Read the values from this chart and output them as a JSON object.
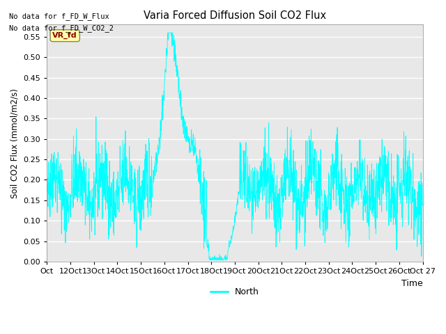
{
  "title": "Varia Forced Diffusion Soil CO2 Flux",
  "ylabel": "Soil CO2 Flux (mmol/m2/s)",
  "xlabel": "Time",
  "legend_label": "North",
  "line_color": "#00FFFF",
  "plot_bg_color": "#E8E8E8",
  "fig_bg_color": "#FFFFFF",
  "ylim": [
    0.0,
    0.58
  ],
  "yticks": [
    0.0,
    0.05,
    0.1,
    0.15,
    0.2,
    0.25,
    0.3,
    0.35,
    0.4,
    0.45,
    0.5,
    0.55
  ],
  "no_data_texts": [
    "No data for f_FD_W_Flux",
    "No data for f_FD_W_CO2_2"
  ],
  "vr_label": "VR_fd",
  "x_tick_labels": [
    "Oct",
    "12Oct",
    "13Oct",
    "14Oct",
    "15Oct",
    "16Oct",
    "17Oct",
    "18Oct",
    "19Oct",
    "20Oct",
    "21Oct",
    "22Oct",
    "23Oct",
    "24Oct",
    "25Oct",
    "26Oct",
    "Oct 27"
  ],
  "seed": 42
}
